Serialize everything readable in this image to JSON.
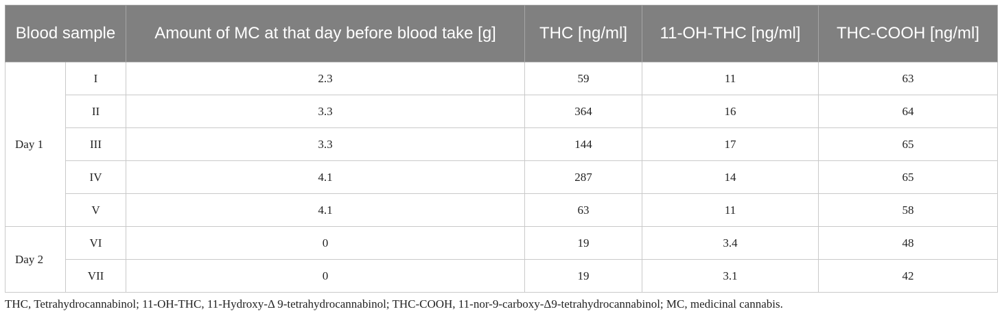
{
  "table": {
    "headers": {
      "blood_sample": "Blood sample",
      "amount": "Amount of MC at that day before blood take [g]",
      "thc": "THC [ng/ml]",
      "oh_thc": "11-OH-THC [ng/ml]",
      "thc_cooh": "THC-COOH [ng/ml]"
    },
    "groups": {
      "day1": "Day 1",
      "day2": "Day 2"
    },
    "rows": [
      {
        "sample": "I",
        "amount": "2.3",
        "thc": "59",
        "oh_thc": "11",
        "thc_cooh": "63"
      },
      {
        "sample": "II",
        "amount": "3.3",
        "thc": "364",
        "oh_thc": "16",
        "thc_cooh": "64"
      },
      {
        "sample": "III",
        "amount": "3.3",
        "thc": "144",
        "oh_thc": "17",
        "thc_cooh": "65"
      },
      {
        "sample": "IV",
        "amount": "4.1",
        "thc": "287",
        "oh_thc": "14",
        "thc_cooh": "65"
      },
      {
        "sample": "V",
        "amount": "4.1",
        "thc": "63",
        "oh_thc": "11",
        "thc_cooh": "58"
      },
      {
        "sample": "VI",
        "amount": "0",
        "thc": "19",
        "oh_thc": "3.4",
        "thc_cooh": "48"
      },
      {
        "sample": "VII",
        "amount": "0",
        "thc": "19",
        "oh_thc": "3.1",
        "thc_cooh": "42"
      }
    ]
  },
  "footnote": "THC, Tetrahydrocannabinol; 11-OH-THC, 11-Hydroxy-Δ 9-tetrahydrocannabinol; THC-COOH, 11-nor-9-carboxy-Δ9-tetrahydrocannabinol; MC, medicinal cannabis."
}
